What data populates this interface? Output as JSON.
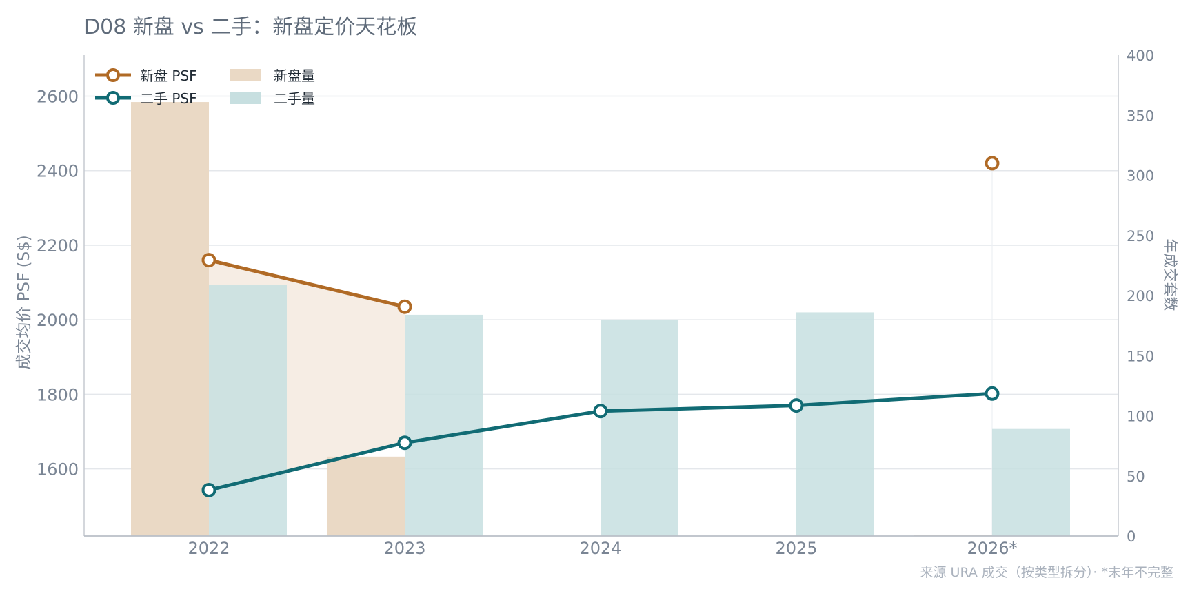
{
  "title": "D08 新盘 vs 二手：新盘定价天花板",
  "source_note": "来源 URA 成交（按类型拆分）· *末年不完整",
  "colors": {
    "new_line": "#b06a25",
    "resale_line": "#116b74",
    "new_bar": "#ead9c5",
    "resale_bar": "#c7dfe0",
    "gap_fill": "#f6ede4",
    "grid": "#e4e7eb",
    "axis": "#c5cad1"
  },
  "chart_data": {
    "type": "bar+line",
    "categories": [
      "2022",
      "2023",
      "2024",
      "2025",
      "2026*"
    ],
    "y_left": {
      "label": "成交均价 PSF (S$)",
      "ticks": [
        1600,
        1800,
        2000,
        2200,
        2400,
        2600
      ],
      "range": [
        1420,
        2710
      ]
    },
    "y_right": {
      "label": "年成交套数",
      "ticks": [
        0,
        50,
        100,
        150,
        200,
        250,
        300,
        350,
        400
      ],
      "range": [
        0,
        400
      ]
    },
    "lines": [
      {
        "name": "新盘 PSF",
        "color": "#b06a25",
        "values": [
          2160,
          2035,
          null,
          null,
          2420
        ]
      },
      {
        "name": "二手 PSF",
        "color": "#116b74",
        "values": [
          1543,
          1670,
          1755,
          1770,
          1802
        ]
      }
    ],
    "bars": [
      {
        "name": "新盘量",
        "color": "#ead9c5",
        "values": [
          361,
          66,
          0,
          0,
          1
        ]
      },
      {
        "name": "二手量",
        "color": "#c7dfe0",
        "values": [
          209,
          184,
          180,
          186,
          89
        ]
      }
    ],
    "legend": {
      "position": "top-left",
      "entries": [
        "新盘 PSF",
        "二手 PSF",
        "新盘量",
        "二手量"
      ]
    },
    "grid": true
  }
}
